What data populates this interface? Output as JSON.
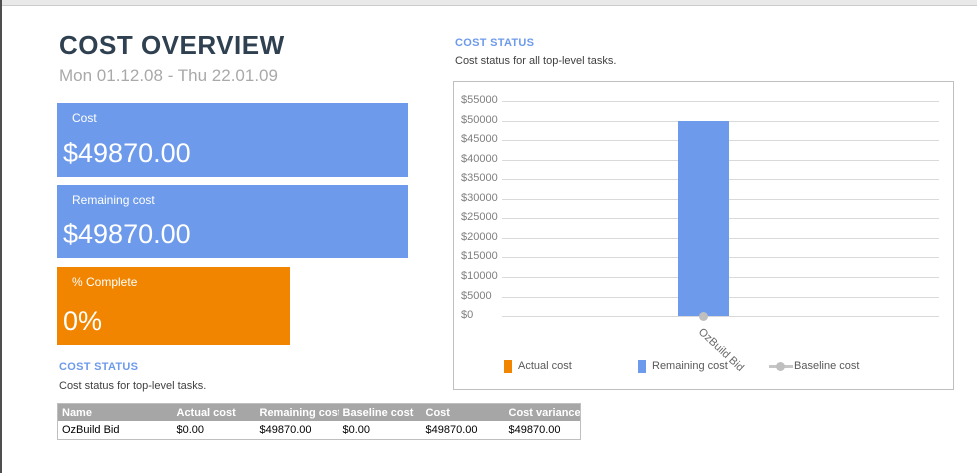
{
  "page": {
    "title": "COST OVERVIEW",
    "date_range": "Mon 01.12.08 - Thu 22.01.09"
  },
  "cards": [
    {
      "label": "Cost",
      "value": "$49870.00",
      "color": "#6d9aea"
    },
    {
      "label": "Remaining cost",
      "value": "$49870.00",
      "color": "#6d9aea"
    },
    {
      "label": "% Complete",
      "value": "0%",
      "color": "#f28500"
    }
  ],
  "left_section": {
    "heading": "COST STATUS",
    "subtitle": "Cost status for top-level tasks."
  },
  "table": {
    "columns": [
      "Name",
      "Actual cost",
      "Remaining cost",
      "Baseline cost",
      "Cost",
      "Cost variance"
    ],
    "rows": [
      [
        "OzBuild Bid",
        "$0.00",
        "$49870.00",
        "$0.00",
        "$49870.00",
        "$49870.00"
      ]
    ]
  },
  "right_section": {
    "heading": "COST STATUS",
    "subtitle": "Cost status for all top-level tasks."
  },
  "chart_data": {
    "type": "bar",
    "title": "",
    "categories": [
      "OzBuild Bid"
    ],
    "series": [
      {
        "name": "Actual cost",
        "kind": "bar",
        "color": "#f28500",
        "values": [
          0
        ]
      },
      {
        "name": "Remaining cost",
        "kind": "bar",
        "color": "#6d9aea",
        "values": [
          49870
        ]
      },
      {
        "name": "Baseline cost",
        "kind": "line",
        "color": "#bfbfbf",
        "values": [
          0
        ]
      }
    ],
    "ylim": [
      0,
      55000
    ],
    "ytick_step": 5000,
    "ytick_prefix": "$",
    "grid": true,
    "legend_position": "bottom"
  },
  "colors": {
    "accent_blue": "#6d9aea",
    "accent_orange": "#f28500",
    "title_text": "#2f4050",
    "muted_text": "#a9a9a9",
    "heading_blue": "#6d9aea",
    "table_header_bg": "#a6a6a6",
    "grid_line": "#d9d9d9",
    "axis_text": "#7f7f7f",
    "baseline_gray": "#bfbfbf",
    "panel_border": "#bfbfbf"
  }
}
